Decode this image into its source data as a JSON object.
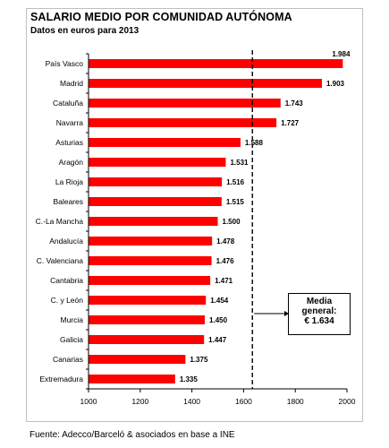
{
  "chart_data": {
    "type": "bar",
    "orientation": "horizontal",
    "title": "SALARIO MEDIO POR COMUNIDAD AUTÓNOMA",
    "subtitle": "Datos en euros para 2013",
    "categories": [
      "País Vasco",
      "Madrid",
      "Cataluña",
      "Navarra",
      "Asturias",
      "Aragón",
      "La Rioja",
      "Baleares",
      "C.-La Mancha",
      "Andalucía",
      "C. Valenciana",
      "Cantabria",
      "C. y León",
      "Murcia",
      "Galicia",
      "Canarias",
      "Extremadura"
    ],
    "values": [
      1984,
      1903,
      1743,
      1727,
      1588,
      1531,
      1516,
      1515,
      1500,
      1478,
      1476,
      1471,
      1454,
      1450,
      1447,
      1375,
      1335
    ],
    "value_labels": [
      "1.984",
      "1.903",
      "1.743",
      "1.727",
      "1.588",
      "1.531",
      "1.516",
      "1.515",
      "1.500",
      "1.478",
      "1.476",
      "1.471",
      "1.454",
      "1.450",
      "1.447",
      "1.375",
      "1.335"
    ],
    "xlim": [
      1000,
      2000
    ],
    "xticks": [
      1000,
      1200,
      1400,
      1600,
      1800,
      2000
    ],
    "xtick_labels": [
      "1000",
      "1200",
      "1400",
      "1600",
      "1800",
      "2000"
    ],
    "reference_line": {
      "value": 1634,
      "style": "dashed"
    },
    "annotation": {
      "line1": "Media",
      "line2": "general:",
      "line3": "€ 1.634"
    },
    "grid": false,
    "bar_color": "#ff0000"
  },
  "source": "Fuente: Adecco/Barceló & asociados en base a INE"
}
